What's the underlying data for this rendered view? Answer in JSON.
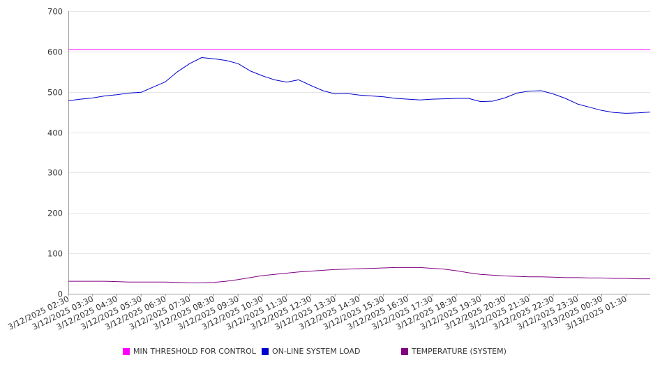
{
  "chart_data": {
    "type": "line",
    "ylim": [
      0,
      700
    ],
    "y_ticks": [
      "0",
      "100",
      "200",
      "300",
      "400",
      "500",
      "600",
      "700"
    ],
    "x_ticks": [
      "3/12/2025 02:30",
      "3/12/2025 03:30",
      "3/12/2025 04:30",
      "3/12/2025 05:30",
      "3/12/2025 06:30",
      "3/12/2025 07:30",
      "3/12/2025 08:30",
      "3/12/2025 09:30",
      "3/12/2025 10:30",
      "3/12/2025 11:30",
      "3/12/2025 12:30",
      "3/12/2025 13:30",
      "3/12/2025 14:30",
      "3/12/2025 15:30",
      "3/12/2025 16:30",
      "3/12/2025 17:30",
      "3/12/2025 18:30",
      "3/12/2025 19:30",
      "3/12/2025 20:30",
      "3/12/2025 21:30",
      "3/12/2025 22:30",
      "3/12/2025 23:30",
      "3/13/2025 00:30",
      "3/13/2025 01:30"
    ],
    "x_hours": [
      0,
      0.5,
      1,
      1.5,
      2,
      2.5,
      3,
      3.5,
      4,
      4.5,
      5,
      5.5,
      6,
      6.5,
      7,
      7.5,
      8,
      8.5,
      9,
      9.5,
      10,
      10.5,
      11,
      11.5,
      12,
      12.5,
      13,
      13.5,
      14,
      14.5,
      15,
      15.5,
      16,
      16.5,
      17,
      17.5,
      18,
      18.5,
      19,
      19.5,
      20,
      20.5,
      21,
      21.5,
      22,
      22.5,
      23,
      23.5,
      24
    ],
    "grid": true,
    "legend_position": "bottom",
    "series": [
      {
        "name": "MIN THRESHOLD FOR CONTROL",
        "color": "#ff00ff",
        "values": [
          605,
          605,
          605,
          605,
          605,
          605,
          605,
          605,
          605,
          605,
          605,
          605,
          605,
          605,
          605,
          605,
          605,
          605,
          605,
          605,
          605,
          605,
          605,
          605,
          605,
          605,
          605,
          605,
          605,
          605,
          605,
          605,
          605,
          605,
          605,
          605,
          605,
          605,
          605,
          605,
          605,
          605,
          605,
          605,
          605,
          605,
          605,
          605,
          605
        ]
      },
      {
        "name": "ON-LINE SYSTEM LOAD",
        "color": "#0000cc",
        "values": [
          478,
          482,
          485,
          490,
          493,
          497,
          499,
          512,
          525,
          550,
          570,
          585,
          582,
          578,
          570,
          552,
          540,
          530,
          524,
          530,
          516,
          503,
          495,
          496,
          492,
          490,
          488,
          484,
          482,
          480,
          482,
          483,
          484,
          484,
          476,
          477,
          485,
          497,
          502,
          503,
          495,
          484,
          470,
          462,
          454,
          449,
          447,
          448,
          450
        ]
      },
      {
        "name": "TEMPERATURE (SYSTEM)",
        "color": "#800080",
        "values": [
          31,
          31,
          31,
          31,
          30,
          29,
          29,
          29,
          29,
          28,
          27,
          27,
          28,
          31,
          35,
          40,
          45,
          48,
          51,
          54,
          56,
          58,
          60,
          61,
          62,
          63,
          64,
          65,
          65,
          65,
          63,
          61,
          57,
          52,
          48,
          46,
          44,
          43,
          42,
          42,
          41,
          40,
          40,
          39,
          39,
          38,
          38,
          37,
          37
        ]
      }
    ]
  }
}
